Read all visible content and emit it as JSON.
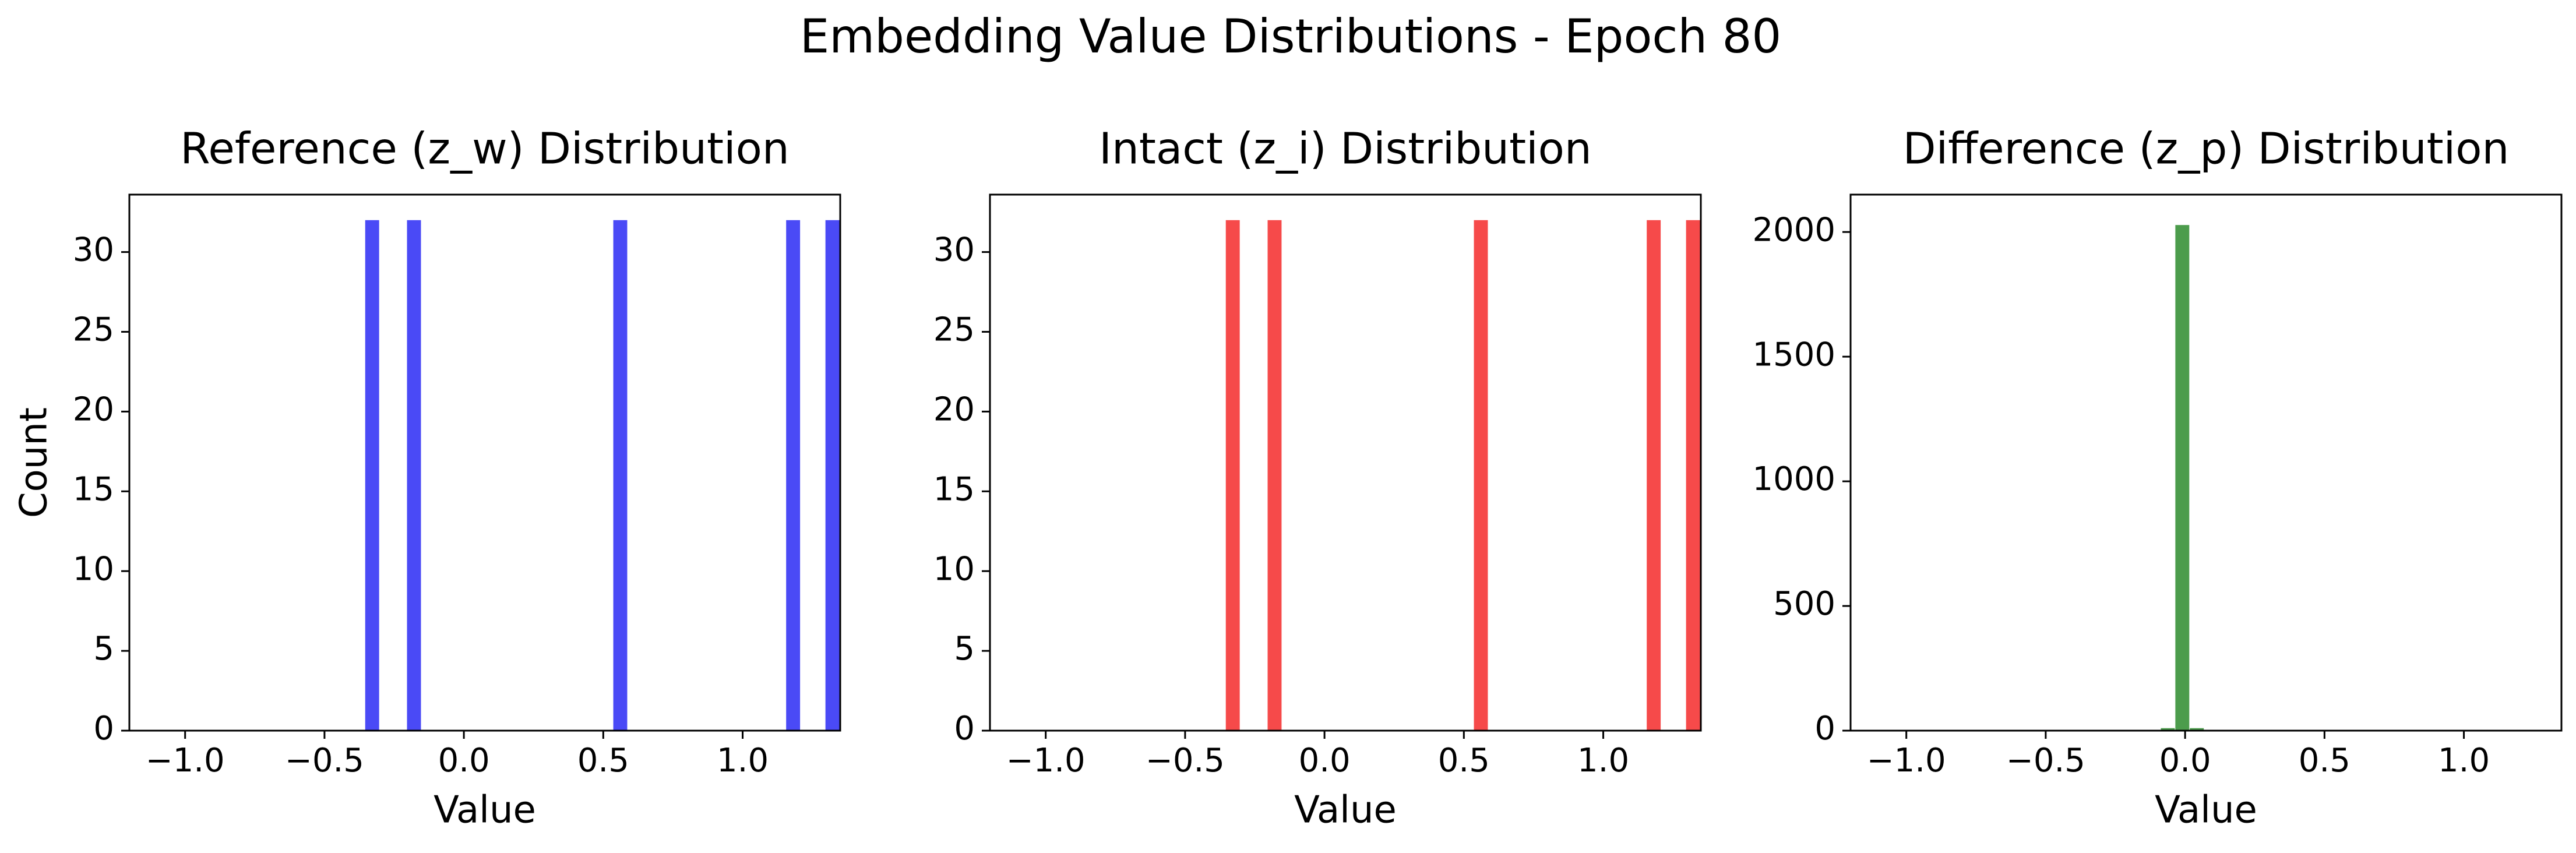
{
  "figure": {
    "title": "Embedding Value Distributions - Epoch 80"
  },
  "chart_data": [
    {
      "type": "bar",
      "title": "Reference (z_w) Distribution",
      "xlabel": "Value",
      "ylabel": "Count",
      "color": "#4a4af6",
      "xlim": [
        -1.2,
        1.35
      ],
      "ylim": [
        0,
        33.6
      ],
      "xticks": [
        -1.0,
        -0.5,
        0.0,
        0.5,
        1.0
      ],
      "xtick_labels": [
        "−1.0",
        "−0.5",
        "0.0",
        "0.5",
        "1.0"
      ],
      "yticks": [
        0,
        5,
        10,
        15,
        20,
        25,
        30
      ],
      "ytick_labels": [
        "0",
        "5",
        "10",
        "15",
        "20",
        "25",
        "30"
      ],
      "bin_width": 0.05,
      "bars": [
        {
          "x": -0.329,
          "value": 32
        },
        {
          "x": -0.179,
          "value": 32
        },
        {
          "x": 0.561,
          "value": 32
        },
        {
          "x": 1.181,
          "value": 32
        },
        {
          "x": 1.322,
          "value": 32
        }
      ]
    },
    {
      "type": "bar",
      "title": "Intact (z_i) Distribution",
      "xlabel": "Value",
      "ylabel": "",
      "color": "#f64a4a",
      "xlim": [
        -1.2,
        1.35
      ],
      "ylim": [
        0,
        33.6
      ],
      "xticks": [
        -1.0,
        -0.5,
        0.0,
        0.5,
        1.0
      ],
      "xtick_labels": [
        "−1.0",
        "−0.5",
        "0.0",
        "0.5",
        "1.0"
      ],
      "yticks": [
        0,
        5,
        10,
        15,
        20,
        25,
        30
      ],
      "ytick_labels": [
        "0",
        "5",
        "10",
        "15",
        "20",
        "25",
        "30"
      ],
      "bin_width": 0.05,
      "bars": [
        {
          "x": -0.329,
          "value": 32
        },
        {
          "x": -0.179,
          "value": 32
        },
        {
          "x": 0.561,
          "value": 32
        },
        {
          "x": 1.181,
          "value": 32
        },
        {
          "x": 1.322,
          "value": 32
        }
      ]
    },
    {
      "type": "bar",
      "title": "Difference (z_p) Distribution",
      "xlabel": "Value",
      "ylabel": "",
      "color": "#4c9c4c",
      "xlim": [
        -1.2,
        1.35
      ],
      "ylim": [
        0,
        2150
      ],
      "xticks": [
        -1.0,
        -0.5,
        0.0,
        0.5,
        1.0
      ],
      "xtick_labels": [
        "−1.0",
        "−0.5",
        "0.0",
        "0.5",
        "1.0"
      ],
      "yticks": [
        0,
        500,
        1000,
        1500,
        2000
      ],
      "ytick_labels": [
        "0",
        "500",
        "1000",
        "1500",
        "2000"
      ],
      "bin_width": 0.05,
      "bars": [
        {
          "x": -0.062,
          "value": 10
        },
        {
          "x": -0.01,
          "value": 2028
        },
        {
          "x": 0.042,
          "value": 10
        }
      ]
    }
  ]
}
